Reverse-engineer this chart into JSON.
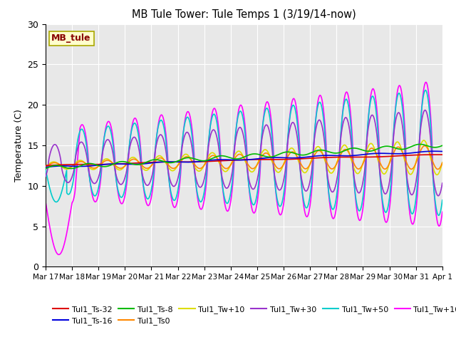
{
  "title": "MB Tule Tower: Tule Temps 1 (3/19/14-now)",
  "ylabel": "Temperature (C)",
  "ylim": [
    0,
    30
  ],
  "xlim": [
    0,
    15
  ],
  "background_color": "#e8e8e8",
  "grid_color": "white",
  "series": {
    "Tul1_Ts-32": {
      "color": "#dd0000",
      "lw": 1.2,
      "zorder": 6
    },
    "Tul1_Ts-16": {
      "color": "#0000dd",
      "lw": 1.2,
      "zorder": 6
    },
    "Tul1_Ts-8": {
      "color": "#00bb00",
      "lw": 1.2,
      "zorder": 6
    },
    "Tul1_Ts0": {
      "color": "#ff8800",
      "lw": 1.2,
      "zorder": 5
    },
    "Tul1_Tw+10": {
      "color": "#dddd00",
      "lw": 1.2,
      "zorder": 4
    },
    "Tul1_Tw+30": {
      "color": "#9933cc",
      "lw": 1.2,
      "zorder": 4
    },
    "Tul1_Tw+50": {
      "color": "#00cccc",
      "lw": 1.2,
      "zorder": 3
    },
    "Tul1_Tw+100": {
      "color": "#ff00ff",
      "lw": 1.2,
      "zorder": 2
    }
  },
  "xtick_labels": [
    "Mar 17",
    "Mar 18",
    "Mar 19",
    "Mar 20",
    "Mar 21",
    "Mar 22",
    "Mar 23",
    "Mar 24",
    "Mar 25",
    "Mar 26",
    "Mar 27",
    "Mar 28",
    "Mar 29",
    "Mar 30",
    "Mar 31",
    "Apr 1"
  ],
  "xtick_positions": [
    0,
    1,
    2,
    3,
    4,
    5,
    6,
    7,
    8,
    9,
    10,
    11,
    12,
    13,
    14,
    15
  ],
  "ytick_labels": [
    "0",
    "5",
    "10",
    "15",
    "20",
    "25",
    "30"
  ],
  "ytick_positions": [
    0,
    5,
    10,
    15,
    20,
    25,
    30
  ],
  "label_box": "MB_tule",
  "label_box_facecolor": "#ffffcc",
  "label_box_edgecolor": "#aaa800",
  "label_box_text_color": "#880000",
  "figsize": [
    6.4,
    4.8
  ],
  "dpi": 100
}
